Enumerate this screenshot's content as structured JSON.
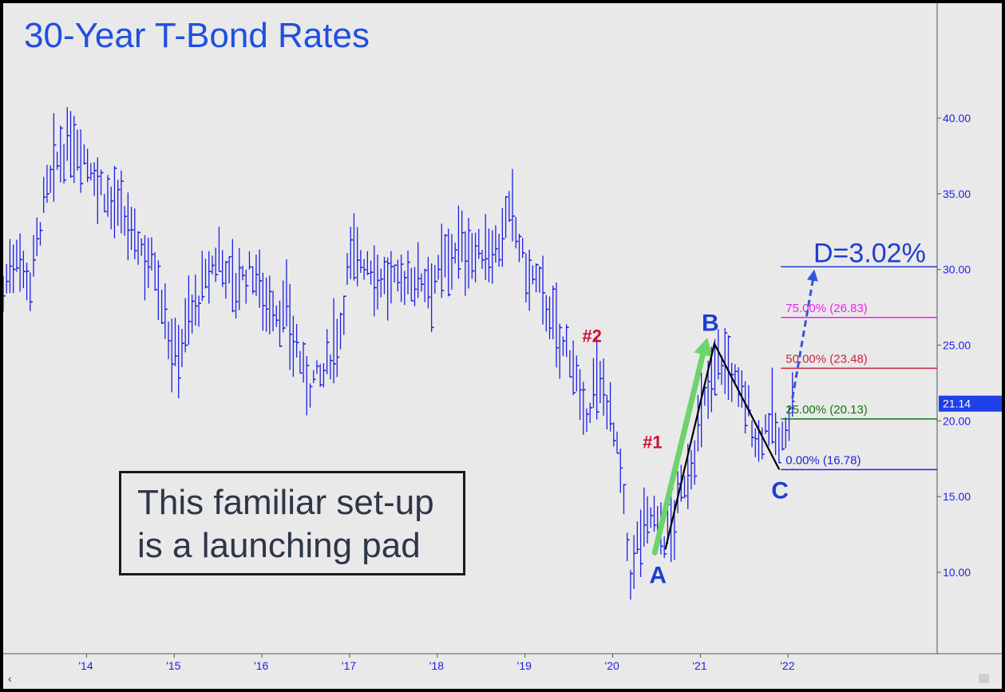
{
  "title": "30-Year T-Bond Rates",
  "colors": {
    "background": "#e9e9e9",
    "bars": "#1f1fe8",
    "title": "#1f4fe0",
    "fib_0": "#2222dd",
    "fib_25": "#117711",
    "fib_50": "#cc2244",
    "fib_75": "#ee22ee",
    "target": "#1f3fd0",
    "arrow_green": "#6dd36d",
    "pattern": "#000000",
    "label_red": "#cc1133"
  },
  "callout": {
    "line1": "This familiar set-up",
    "line2": "is a launching pad"
  },
  "scroll": {
    "left_arrow": "‹"
  },
  "chart_data": {
    "type": "bar",
    "title": "30-Year T-Bond Rates",
    "xlabel": "",
    "ylabel": "",
    "ylim": [
      3.0,
      48.6
    ],
    "xlim": [
      2013.05,
      2023.7
    ],
    "grid": false,
    "x_ticks": [
      {
        "x": 2014,
        "label": "'14"
      },
      {
        "x": 2015,
        "label": "'15"
      },
      {
        "x": 2016,
        "label": "'16"
      },
      {
        "x": 2017,
        "label": "'17"
      },
      {
        "x": 2018,
        "label": "'18"
      },
      {
        "x": 2019,
        "label": "'19"
      },
      {
        "x": 2020,
        "label": "'20"
      },
      {
        "x": 2021,
        "label": "'21"
      },
      {
        "x": 2022,
        "label": "'22"
      }
    ],
    "y_ticks": [
      {
        "y": 10,
        "label": "10.00"
      },
      {
        "y": 15,
        "label": "15.00"
      },
      {
        "y": 20,
        "label": "20.00"
      },
      {
        "y": 25,
        "label": "25.00"
      },
      {
        "y": 30,
        "label": "30.00"
      },
      {
        "y": 35,
        "label": "35.00"
      },
      {
        "y": 40,
        "label": "40.00"
      }
    ],
    "price_anchors": [
      [
        2013.05,
        28.5
      ],
      [
        2013.2,
        31.5
      ],
      [
        2013.35,
        29.0
      ],
      [
        2013.5,
        34.0
      ],
      [
        2013.65,
        37.0
      ],
      [
        2013.85,
        38.5
      ],
      [
        2014.0,
        37.5
      ],
      [
        2014.15,
        35.5
      ],
      [
        2014.35,
        34.0
      ],
      [
        2014.55,
        32.0
      ],
      [
        2014.8,
        30.0
      ],
      [
        2015.0,
        24.0
      ],
      [
        2015.15,
        26.5
      ],
      [
        2015.35,
        29.0
      ],
      [
        2015.5,
        31.0
      ],
      [
        2015.7,
        29.0
      ],
      [
        2015.9,
        30.0
      ],
      [
        2016.1,
        27.5
      ],
      [
        2016.3,
        27.0
      ],
      [
        2016.5,
        22.5
      ],
      [
        2016.7,
        23.0
      ],
      [
        2016.9,
        26.5
      ],
      [
        2017.0,
        31.0
      ],
      [
        2017.2,
        30.5
      ],
      [
        2017.45,
        29.0
      ],
      [
        2017.7,
        29.5
      ],
      [
        2018.0,
        29.5
      ],
      [
        2018.2,
        31.5
      ],
      [
        2018.5,
        31.0
      ],
      [
        2018.7,
        31.5
      ],
      [
        2018.85,
        34.0
      ],
      [
        2019.0,
        30.0
      ],
      [
        2019.2,
        28.5
      ],
      [
        2019.4,
        25.0
      ],
      [
        2019.55,
        24.5
      ],
      [
        2019.65,
        19.5
      ],
      [
        2019.8,
        22.5
      ],
      [
        2019.95,
        21.5
      ],
      [
        2020.1,
        16.0
      ],
      [
        2020.2,
        9.5
      ],
      [
        2020.3,
        12.5
      ],
      [
        2020.45,
        14.0
      ],
      [
        2020.6,
        12.0
      ],
      [
        2020.8,
        15.5
      ],
      [
        2020.95,
        18.5
      ],
      [
        2021.1,
        22.5
      ],
      [
        2021.2,
        24.5
      ],
      [
        2021.35,
        23.0
      ],
      [
        2021.5,
        21.5
      ],
      [
        2021.65,
        18.5
      ],
      [
        2021.8,
        20.5
      ],
      [
        2021.9,
        18.0
      ],
      [
        2022.05,
        21.14
      ]
    ],
    "last_price": 21.14,
    "last_price_label": "21.14",
    "fib_levels": [
      {
        "pct_label": "0.00%",
        "value": 16.78,
        "text": "0.00% (16.78)",
        "color": "#2222dd"
      },
      {
        "pct_label": "25.00%",
        "value": 20.13,
        "text": "25.00% (20.13)",
        "color": "#117711"
      },
      {
        "pct_label": "50.00%",
        "value": 23.48,
        "text": "50.00% (23.48)",
        "color": "#cc2244"
      },
      {
        "pct_label": "75.00%",
        "value": 26.83,
        "text": "75.00% (26.83)",
        "color": "#ee22ee"
      },
      {
        "pct_label": "D",
        "value": 30.18,
        "text": "D=3.02%",
        "color": "#1f3fd0"
      }
    ],
    "pattern_points": [
      {
        "label": "A",
        "x": 2020.6,
        "y": 11.5
      },
      {
        "label": "B",
        "x": 2021.16,
        "y": 25.1
      },
      {
        "label": "C",
        "x": 2021.9,
        "y": 16.78
      }
    ],
    "green_arrow": {
      "from": [
        2020.48,
        11.3
      ],
      "to": [
        2021.08,
        25.5
      ]
    },
    "dashed_arrow": {
      "from": [
        2022.05,
        21.5
      ],
      "to": [
        2022.3,
        30.0
      ]
    },
    "annotations": [
      {
        "label": "#1",
        "x": 2020.47,
        "y": 18.2
      },
      {
        "label": "#2",
        "x": 2019.78,
        "y": 25.2
      }
    ]
  }
}
